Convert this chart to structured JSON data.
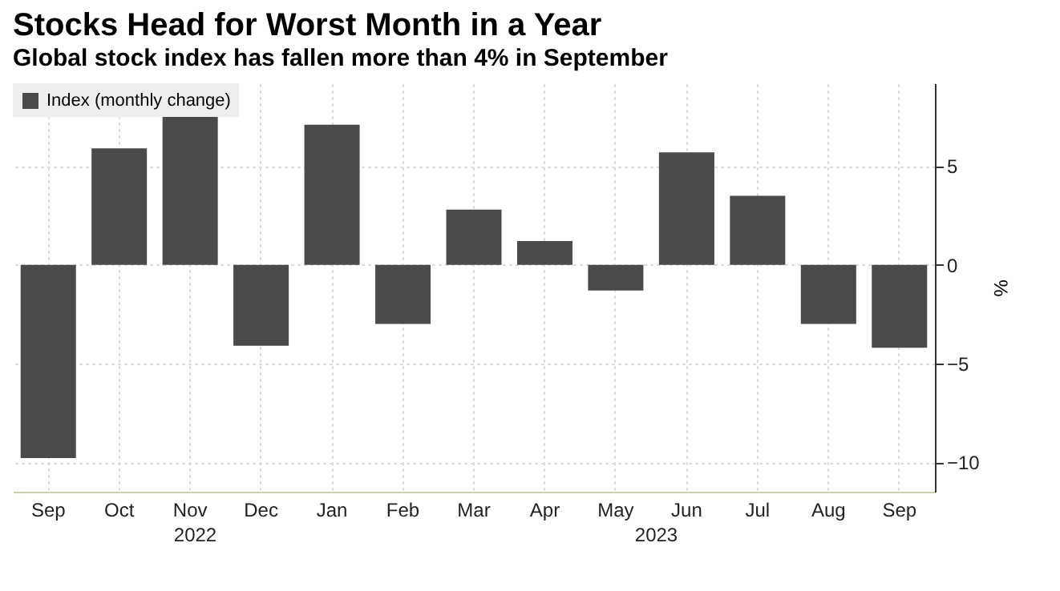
{
  "chart_data": {
    "type": "bar",
    "title": "Stocks Head for Worst Month in a Year",
    "subtitle": "Global stock index has fallen more than 4% in September",
    "categories": [
      "Sep",
      "Oct",
      "Nov",
      "Dec",
      "Jan",
      "Feb",
      "Mar",
      "Apr",
      "May",
      "Jun",
      "Jul",
      "Aug",
      "Sep"
    ],
    "series": [
      {
        "name": "Index (monthly change)",
        "color": "#4a4a4a",
        "values": [
          -9.8,
          5.9,
          7.6,
          -4.1,
          7.1,
          -3.0,
          2.8,
          1.2,
          -1.3,
          5.7,
          3.5,
          -3.0,
          -4.2
        ]
      }
    ],
    "ylabel": "%",
    "ylim": [
      -11.5,
      9.2
    ],
    "yticks": [
      -10,
      -5,
      0,
      5
    ],
    "grid": true,
    "legend": "top left",
    "annotations": [
      "2022",
      "2023"
    ]
  }
}
